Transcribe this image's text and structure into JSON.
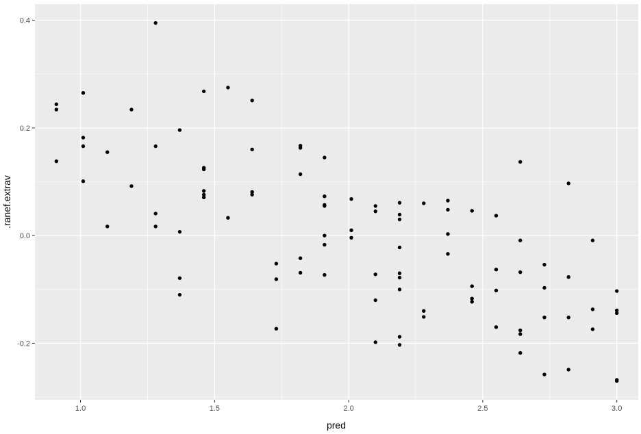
{
  "chart_data": {
    "type": "scatter",
    "title": "",
    "xlabel": "pred",
    "ylabel": ".ranef.extrav",
    "xlim": [
      0.83,
      3.08
    ],
    "ylim": [
      -0.305,
      0.43
    ],
    "x_ticks": [
      1.0,
      1.5,
      2.0,
      2.5,
      3.0
    ],
    "x_tick_labels": [
      "1.0",
      "1.5",
      "2.0",
      "2.5",
      "3.0"
    ],
    "y_ticks": [
      -0.2,
      0.0,
      0.2,
      0.4
    ],
    "y_tick_labels": [
      "-0.2",
      "0.0",
      "0.2",
      "0.4"
    ],
    "grid": true,
    "panel_color": "#ebebeb",
    "grid_color": "#ffffff",
    "point_color": "#000000",
    "x": [
      0.91,
      0.91,
      0.91,
      1.01,
      1.01,
      1.01,
      1.01,
      1.1,
      1.1,
      1.19,
      1.19,
      1.28,
      1.28,
      1.28,
      1.28,
      1.37,
      1.37,
      1.37,
      1.37,
      1.46,
      1.46,
      1.46,
      1.46,
      1.46,
      1.46,
      1.55,
      1.55,
      1.64,
      1.64,
      1.64,
      1.64,
      1.73,
      1.73,
      1.73,
      1.82,
      1.82,
      1.82,
      1.82,
      1.82,
      1.91,
      1.91,
      1.91,
      1.91,
      1.91,
      1.91,
      1.91,
      2.01,
      2.01,
      2.01,
      2.1,
      2.1,
      2.1,
      2.1,
      2.1,
      2.19,
      2.19,
      2.19,
      2.19,
      2.19,
      2.19,
      2.19,
      2.19,
      2.19,
      2.28,
      2.28,
      2.28,
      2.37,
      2.37,
      2.37,
      2.37,
      2.46,
      2.46,
      2.46,
      2.46,
      2.55,
      2.55,
      2.55,
      2.55,
      2.64,
      2.64,
      2.64,
      2.64,
      2.64,
      2.64,
      2.73,
      2.73,
      2.73,
      2.73,
      2.82,
      2.82,
      2.82,
      2.82,
      2.91,
      2.91,
      2.91,
      3.0,
      3.0,
      3.0,
      3.0,
      3.0
    ],
    "y": [
      0.244,
      0.234,
      0.138,
      0.265,
      0.182,
      0.166,
      0.101,
      0.155,
      0.017,
      0.234,
      0.092,
      0.395,
      0.166,
      0.041,
      0.017,
      0.196,
      0.007,
      -0.079,
      -0.11,
      0.268,
      0.126,
      0.123,
      0.083,
      0.076,
      0.071,
      0.275,
      0.033,
      0.251,
      0.16,
      0.081,
      0.076,
      -0.052,
      -0.081,
      -0.173,
      0.167,
      0.163,
      0.114,
      -0.042,
      -0.069,
      0.145,
      0.073,
      0.057,
      0.055,
      -0.017,
      -0.073,
      0.0,
      0.068,
      0.01,
      -0.004,
      0.055,
      0.045,
      -0.072,
      -0.12,
      -0.198,
      0.061,
      0.039,
      0.03,
      -0.022,
      -0.07,
      -0.078,
      -0.1,
      -0.188,
      -0.203,
      0.06,
      -0.14,
      -0.151,
      0.065,
      0.048,
      0.003,
      -0.034,
      0.046,
      -0.094,
      -0.117,
      -0.123,
      0.037,
      -0.063,
      -0.102,
      -0.17,
      0.137,
      -0.009,
      -0.068,
      -0.176,
      -0.183,
      -0.218,
      -0.054,
      -0.097,
      -0.152,
      -0.258,
      0.097,
      -0.077,
      -0.152,
      -0.249,
      -0.009,
      -0.137,
      -0.174,
      -0.103,
      -0.139,
      -0.144,
      -0.268,
      -0.27
    ]
  }
}
